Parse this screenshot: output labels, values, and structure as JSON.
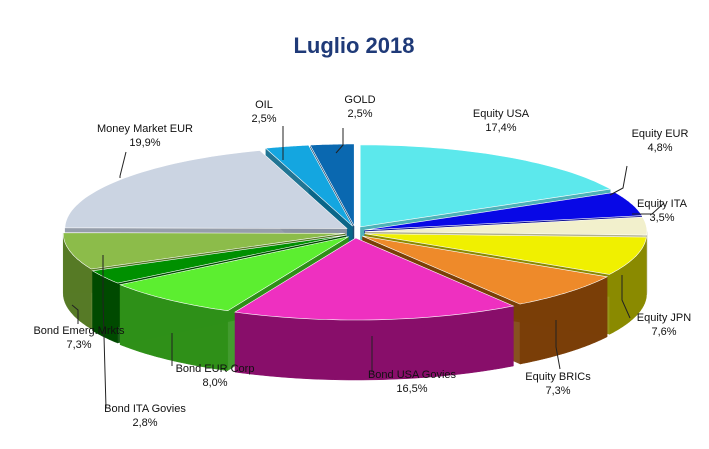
{
  "chart_data": {
    "type": "pie",
    "title": "Luglio 2018",
    "style": "3d-exploded",
    "slices": [
      {
        "label": "Equity USA",
        "value_label": "17,4%",
        "value": 17.4,
        "color": "#5ce8ec",
        "side": "#3aaab0"
      },
      {
        "label": "Equity EUR",
        "value_label": "4,8%",
        "value": 4.8,
        "color": "#0808e6",
        "side": "#050590"
      },
      {
        "label": "Equity ITA",
        "value_label": "3,5%",
        "value": 3.5,
        "color": "#f2f0cc",
        "side": "#b4b28a"
      },
      {
        "label": "Equity JPN",
        "value_label": "7,6%",
        "value": 7.6,
        "color": "#f0f000",
        "side": "#8a8a00"
      },
      {
        "label": "Equity BRICs",
        "value_label": "7,3%",
        "value": 7.3,
        "color": "#ee8a2a",
        "side": "#7a3e08"
      },
      {
        "label": "Bond USA Govies",
        "value_label": "16,5%",
        "value": 16.5,
        "color": "#ee30c0",
        "side": "#880e6a"
      },
      {
        "label": "Bond EUR Corp",
        "value_label": "8,0%",
        "value": 8.0,
        "color": "#5cee30",
        "side": "#2f9018"
      },
      {
        "label": "Bond ITA Govies",
        "value_label": "2,8%",
        "value": 2.8,
        "color": "#009000",
        "side": "#004a00"
      },
      {
        "label": "Bond Emerg.Mrkts",
        "value_label": "7,3%",
        "value": 7.3,
        "color": "#8cbc4a",
        "side": "#567a26"
      },
      {
        "label": "Money Market EUR",
        "value_label": "19,9%",
        "value": 19.9,
        "color": "#cbd4e2",
        "side": "#8b93a2"
      },
      {
        "label": "OIL",
        "value_label": "2,5%",
        "value": 2.5,
        "color": "#14a6e0",
        "side": "#0a6688"
      },
      {
        "label": "GOLD",
        "value_label": "2,5%",
        "value": 2.5,
        "color": "#0a68b0",
        "side": "#053a66"
      }
    ]
  }
}
